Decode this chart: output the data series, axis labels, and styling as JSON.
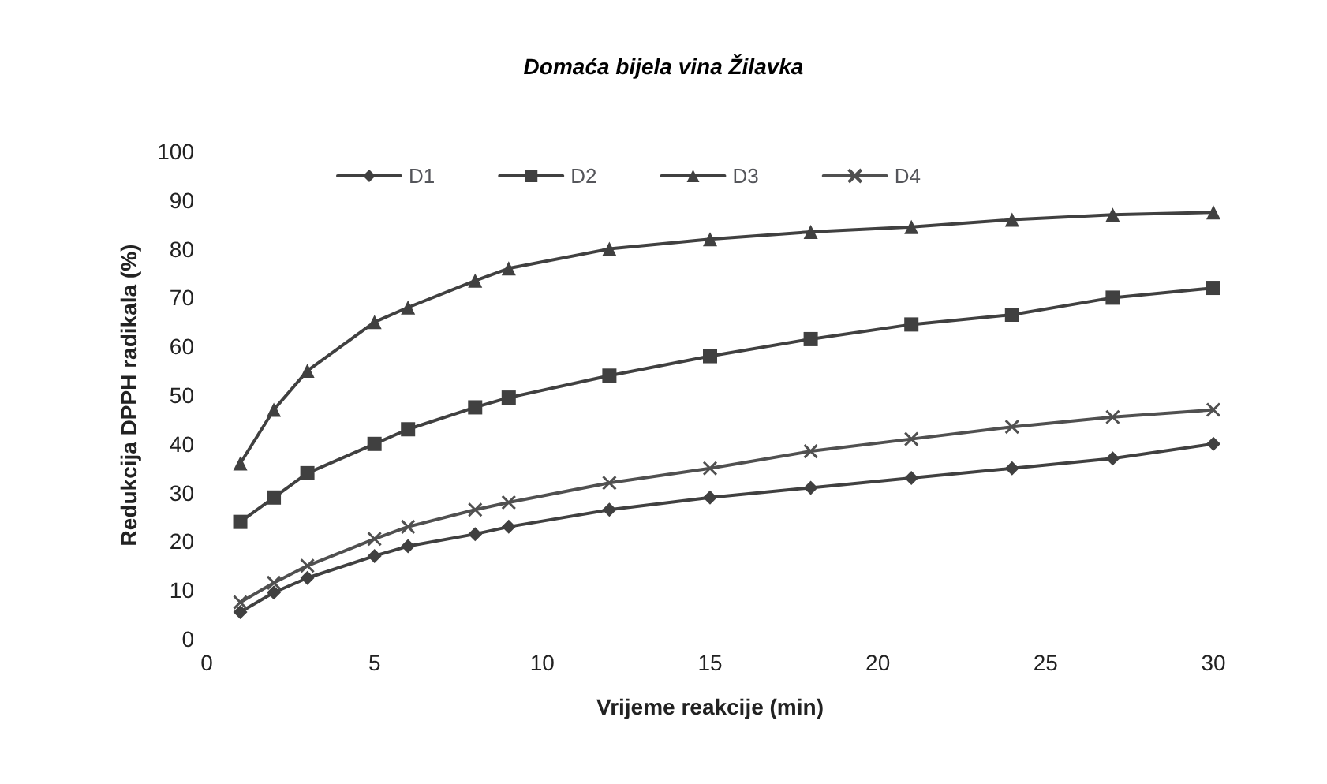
{
  "chart_data": {
    "type": "line",
    "title": "Domaća bijela vina Žilavka",
    "xlabel": "Vrijeme reakcije (min)",
    "ylabel": "Redukcija DPPH radikala (%)",
    "x": [
      1,
      2,
      3,
      5,
      6,
      8,
      9,
      12,
      15,
      18,
      21,
      24,
      27,
      30
    ],
    "series": [
      {
        "name": "D1",
        "color": "#404040",
        "marker": "diamond",
        "values": [
          5.5,
          9.5,
          12.5,
          17,
          19,
          21.5,
          23,
          26.5,
          29,
          31,
          33,
          35,
          37,
          40
        ]
      },
      {
        "name": "D2",
        "color": "#404040",
        "marker": "square",
        "values": [
          24,
          29,
          34,
          40,
          43,
          47.5,
          49.5,
          54,
          58,
          61.5,
          64.5,
          66.5,
          70,
          72
        ]
      },
      {
        "name": "D3",
        "color": "#404040",
        "marker": "triangle",
        "values": [
          36,
          47,
          55,
          65,
          68,
          73.5,
          76,
          80,
          82,
          83.5,
          84.5,
          86,
          87,
          87.5
        ]
      },
      {
        "name": "D4",
        "color": "#505050",
        "marker": "cross",
        "values": [
          7.5,
          11.5,
          15,
          20.5,
          23,
          26.5,
          28,
          32,
          35,
          38.5,
          41,
          43.5,
          45.5,
          47
        ]
      }
    ],
    "xlim": [
      0,
      30
    ],
    "xticks": [
      0,
      5,
      10,
      15,
      20,
      25,
      30
    ],
    "ylim": [
      0,
      100
    ],
    "yticks": [
      0,
      10,
      20,
      30,
      40,
      50,
      60,
      70,
      80,
      90,
      100
    ],
    "grid": false,
    "legend": "top"
  }
}
